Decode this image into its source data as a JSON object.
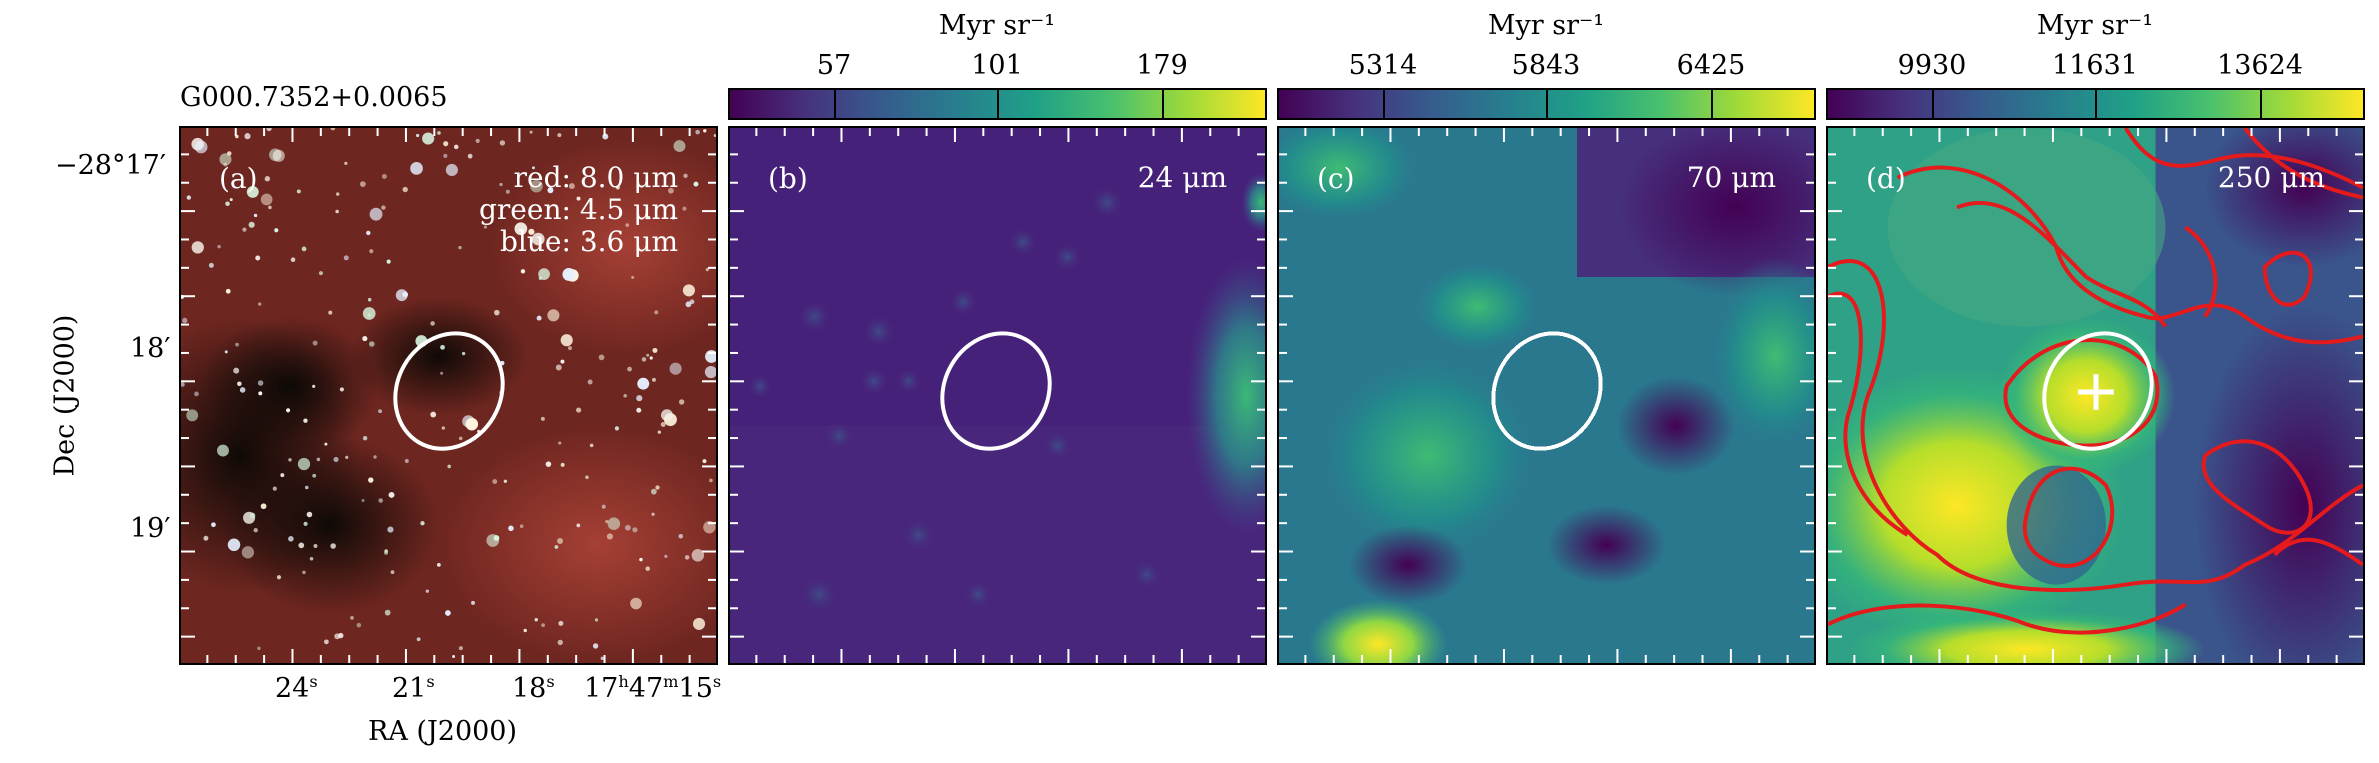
{
  "source_title": "G000.7352+0.0065",
  "axes": {
    "ylabel": "Dec (J2000)",
    "xlabel": "RA (J2000)",
    "yticks": [
      "−28°17′",
      "18′",
      "19′"
    ],
    "xticks": [
      {
        "main": "24",
        "sup": "s"
      },
      {
        "main": "21",
        "sup": "s"
      },
      {
        "main": "18",
        "sup": "s"
      },
      {
        "main": "17",
        "sup1": "h",
        "mid": "47",
        "sup2": "m",
        "end": "15",
        "sup3": "s"
      }
    ]
  },
  "panels": [
    {
      "label": "(a)",
      "wavelength_lines": [
        "red: 8.0 μm",
        "green: 4.5 μm",
        "blue: 3.6 μm"
      ],
      "colormap": "rgb-composite"
    },
    {
      "label": "(b)",
      "wavelength": "24 μm",
      "colorbar": {
        "title": "Myr sr⁻¹",
        "ticks": [
          "57",
          "101",
          "179"
        ]
      }
    },
    {
      "label": "(c)",
      "wavelength": "70 μm",
      "colorbar": {
        "title": "Myr sr⁻¹",
        "ticks": [
          "5314",
          "5843",
          "6425"
        ]
      }
    },
    {
      "label": "(d)",
      "wavelength": "250 μm",
      "colorbar": {
        "title": "Myr sr⁻¹",
        "ticks": [
          "9930",
          "11631",
          "13624"
        ]
      }
    }
  ],
  "colors": {
    "ellipse": "#ffffff",
    "contours": "#e41a1c",
    "marker": "#ffffff"
  }
}
